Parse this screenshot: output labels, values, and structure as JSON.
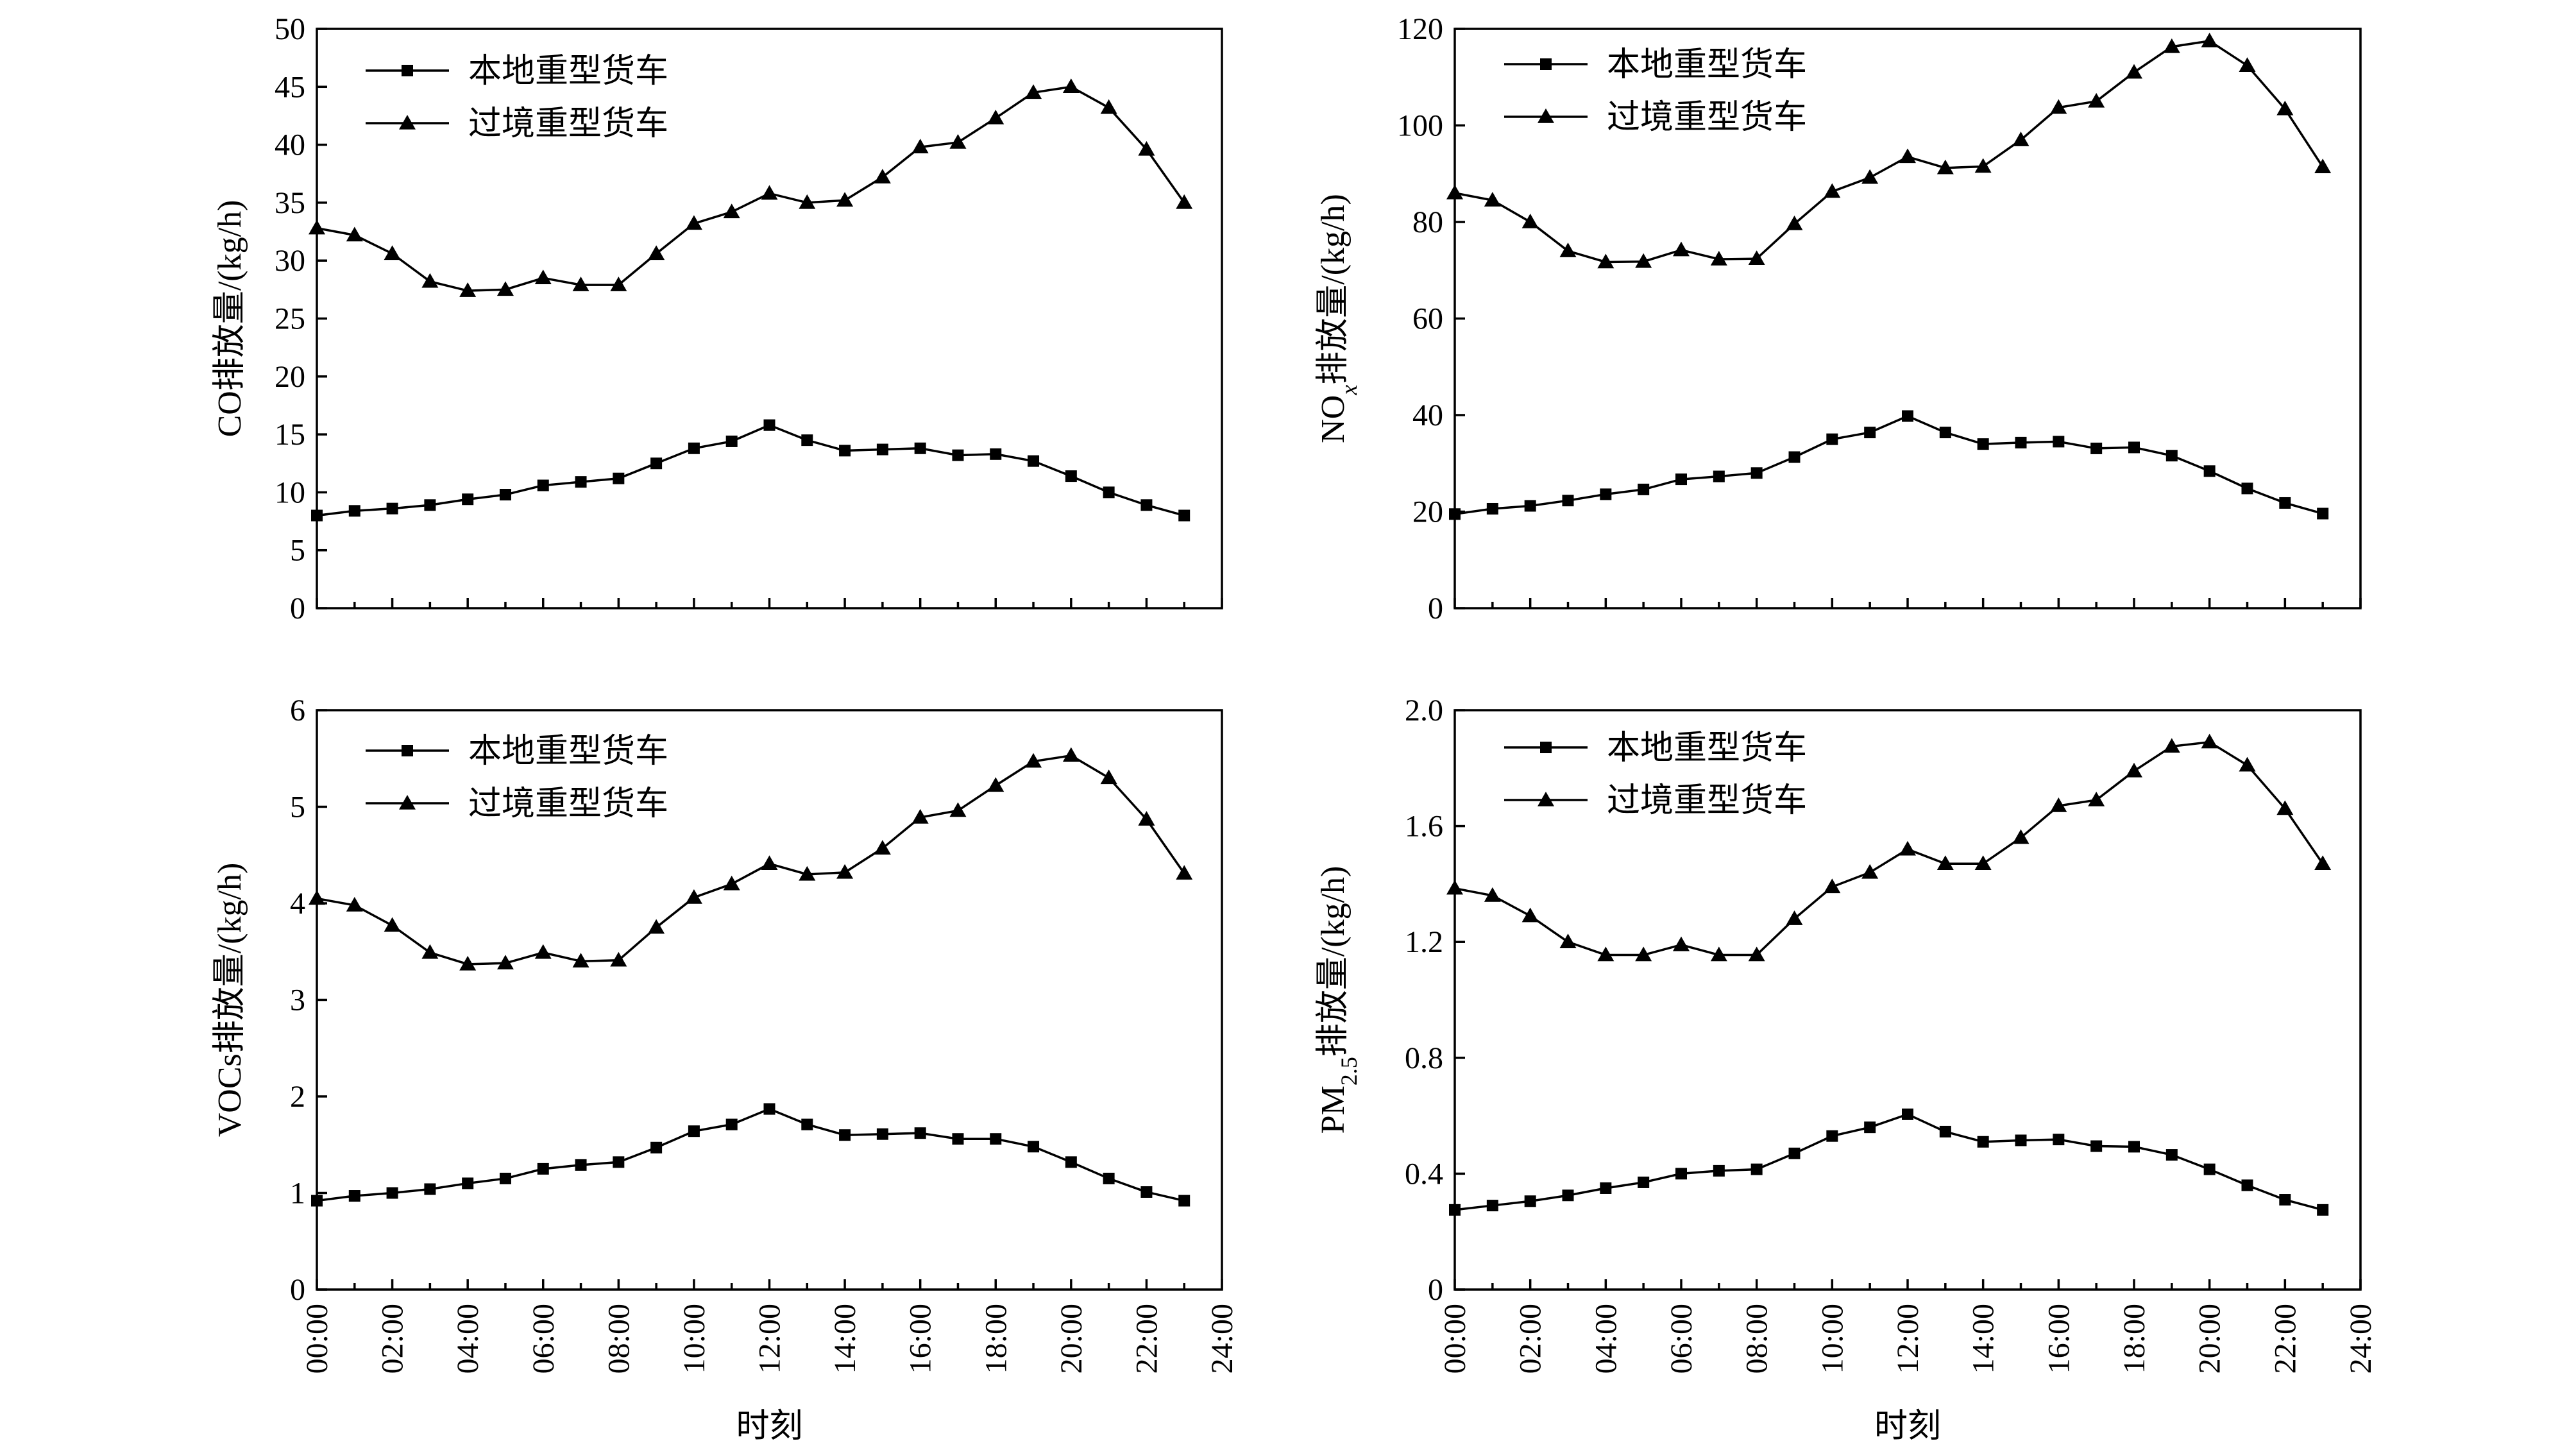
{
  "chart_data": [
    {
      "type": "line",
      "ylabel": "CO排放量/(kg/h)",
      "xlabel": "",
      "ylim": [
        0,
        50
      ],
      "yticks": [
        0,
        5,
        10,
        15,
        20,
        25,
        30,
        35,
        40,
        45,
        50
      ],
      "legend_position": "top-left",
      "series": [
        {
          "name": "本地重型货车",
          "marker": "square",
          "values": [
            8.0,
            8.4,
            8.6,
            8.9,
            9.4,
            9.8,
            10.6,
            10.9,
            11.2,
            12.5,
            13.8,
            14.4,
            15.8,
            14.5,
            13.6,
            13.7,
            13.8,
            13.2,
            13.3,
            12.7,
            11.4,
            10.0,
            8.9,
            8.0
          ]
        },
        {
          "name": "过境重型货车",
          "marker": "triangle",
          "values": [
            32.8,
            32.2,
            30.6,
            28.2,
            27.4,
            27.5,
            28.5,
            27.9,
            27.9,
            30.6,
            33.2,
            34.2,
            35.8,
            35.0,
            35.2,
            37.2,
            39.8,
            40.2,
            42.3,
            44.5,
            45.0,
            43.2,
            39.6,
            35.0
          ]
        }
      ]
    },
    {
      "type": "line",
      "ylabel": "NO",
      "ylabel_sub": "x",
      "ylabel_rest": "排放量/(kg/h)",
      "xlabel": "",
      "ylim": [
        0,
        120
      ],
      "yticks": [
        0,
        20,
        40,
        60,
        80,
        100,
        120
      ],
      "legend_position": "top-left",
      "series": [
        {
          "name": "本地重型货车",
          "marker": "square",
          "values": [
            19.5,
            20.6,
            21.2,
            22.3,
            23.6,
            24.6,
            26.7,
            27.3,
            28.0,
            31.3,
            35.0,
            36.4,
            39.8,
            36.4,
            34.0,
            34.3,
            34.5,
            33.1,
            33.3,
            31.6,
            28.4,
            24.8,
            21.8,
            19.6
          ]
        },
        {
          "name": "过境重型货车",
          "marker": "triangle",
          "values": [
            86.0,
            84.5,
            80.0,
            74.0,
            71.7,
            71.8,
            74.2,
            72.3,
            72.4,
            79.6,
            86.3,
            89.2,
            93.5,
            91.2,
            91.5,
            97.0,
            103.7,
            105.0,
            111.0,
            116.3,
            117.5,
            112.4,
            103.4,
            91.4
          ]
        }
      ]
    },
    {
      "type": "line",
      "ylabel": "VOCs排放量/(kg/h)",
      "xlabel": "时刻",
      "ylim": [
        0,
        6
      ],
      "yticks": [
        0,
        1,
        2,
        3,
        4,
        5,
        6
      ],
      "xticks": [
        "00:00",
        "02:00",
        "04:00",
        "06:00",
        "08:00",
        "10:00",
        "12:00",
        "14:00",
        "16:00",
        "18:00",
        "20:00",
        "22:00",
        "24:00"
      ],
      "legend_position": "top-left",
      "series": [
        {
          "name": "本地重型货车",
          "marker": "square",
          "values": [
            0.92,
            0.97,
            1.0,
            1.04,
            1.1,
            1.15,
            1.25,
            1.29,
            1.32,
            1.47,
            1.64,
            1.71,
            1.87,
            1.71,
            1.6,
            1.61,
            1.62,
            1.56,
            1.56,
            1.48,
            1.32,
            1.15,
            1.01,
            0.92
          ]
        },
        {
          "name": "过境重型货车",
          "marker": "triangle",
          "values": [
            4.05,
            3.98,
            3.77,
            3.49,
            3.37,
            3.38,
            3.49,
            3.4,
            3.41,
            3.75,
            4.06,
            4.2,
            4.41,
            4.3,
            4.32,
            4.57,
            4.89,
            4.96,
            5.22,
            5.47,
            5.53,
            5.3,
            4.87,
            4.31
          ]
        }
      ]
    },
    {
      "type": "line",
      "ylabel": "PM",
      "ylabel_sub": "2.5",
      "ylabel_rest": "排放量/(kg/h)",
      "xlabel": "时刻",
      "ylim": [
        0,
        2.0
      ],
      "yticks": [
        "0",
        "0.4",
        "0.8",
        "1.2",
        "1.6",
        "2.0"
      ],
      "xticks": [
        "00:00",
        "02:00",
        "04:00",
        "06:00",
        "08:00",
        "10:00",
        "12:00",
        "14:00",
        "16:00",
        "18:00",
        "20:00",
        "22:00",
        "24:00"
      ],
      "legend_position": "top-left",
      "series": [
        {
          "name": "本地重型货车",
          "marker": "square",
          "values": [
            0.275,
            0.29,
            0.305,
            0.325,
            0.35,
            0.37,
            0.4,
            0.41,
            0.415,
            0.47,
            0.53,
            0.56,
            0.605,
            0.545,
            0.51,
            0.515,
            0.518,
            0.495,
            0.493,
            0.465,
            0.415,
            0.36,
            0.31,
            0.275
          ]
        },
        {
          "name": "过境重型货车",
          "marker": "triangle",
          "values": [
            1.385,
            1.36,
            1.29,
            1.2,
            1.155,
            1.155,
            1.19,
            1.155,
            1.155,
            1.28,
            1.39,
            1.44,
            1.52,
            1.47,
            1.47,
            1.56,
            1.67,
            1.69,
            1.79,
            1.875,
            1.89,
            1.81,
            1.66,
            1.47
          ]
        }
      ]
    }
  ]
}
